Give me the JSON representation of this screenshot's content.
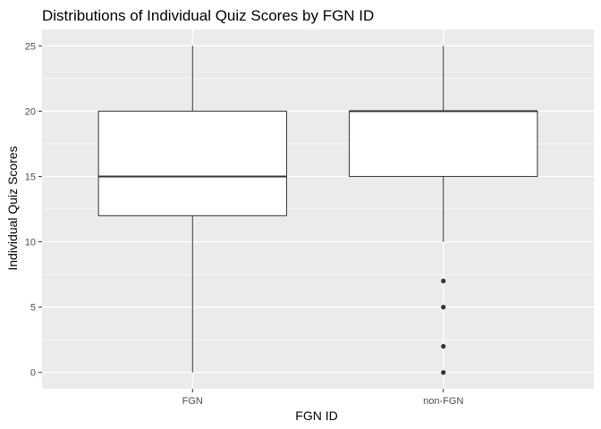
{
  "chart_data": {
    "type": "boxplot",
    "title": "Distributions of Individual Quiz Scores by FGN ID",
    "xlabel": "FGN ID",
    "ylabel": "Individual Quiz Scores",
    "ylim": [
      -1.25,
      26.25
    ],
    "yticks": [
      0,
      5,
      10,
      15,
      20,
      25
    ],
    "grid": true,
    "colors": {
      "panel": "#ebebeb",
      "grid": "#ffffff",
      "box_fill": "#ffffff",
      "box_stroke": "#333333",
      "outlier": "#333333",
      "tick_text": "#4d4d4d"
    },
    "categories": [
      "FGN",
      "non-FGN"
    ],
    "boxes": [
      {
        "category": "FGN",
        "whisker_low": 0,
        "q1": 12,
        "median": 15,
        "q3": 20,
        "whisker_high": 25,
        "outliers": []
      },
      {
        "category": "non-FGN",
        "whisker_low": 10,
        "q1": 15,
        "median": 20,
        "q3": 20,
        "whisker_high": 25,
        "outliers": [
          0,
          2,
          5,
          7
        ]
      }
    ]
  }
}
